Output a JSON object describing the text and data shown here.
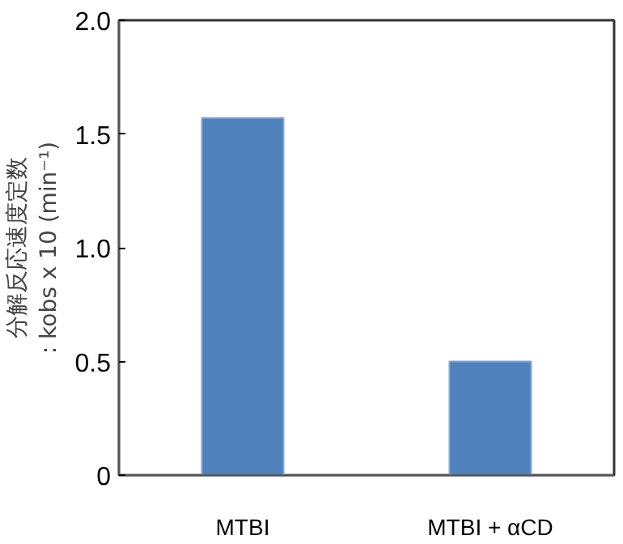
{
  "chart_data": {
    "type": "bar",
    "ylabel": "分解反応速度定数\n: kobs x 10 (min⁻¹)",
    "categories": [
      "MTBI",
      "MTBI + αCD"
    ],
    "values": [
      1.57,
      0.5
    ],
    "color": "#4f81bd",
    "ylim": [
      0,
      2
    ],
    "yticks": [
      0,
      0.5,
      {
        "value": 1,
        "label": "1.0"
      },
      1.5,
      {
        "value": 2,
        "label": "2.0"
      }
    ],
    "grid": false
  }
}
